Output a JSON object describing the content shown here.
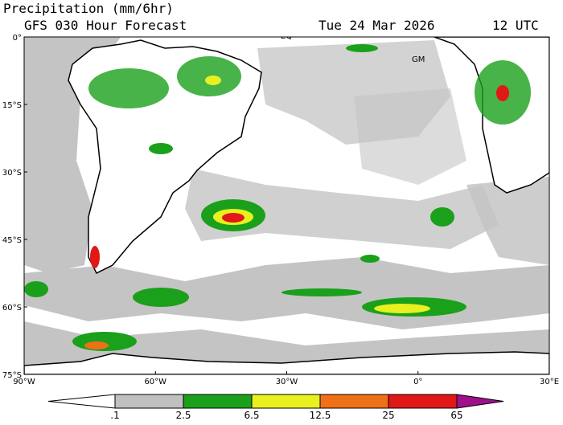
{
  "header": {
    "title": "Precipitation (mm/6hr)",
    "subtitle": "GFS 030 Hour Forecast",
    "date": "Tue 24 Mar 2026",
    "time": "12 UTC"
  },
  "map": {
    "lat_labels": [
      "0°",
      "15°S",
      "30°S",
      "45°S",
      "60°S",
      "75°S"
    ],
    "lon_labels": [
      "90°W",
      "60°W",
      "30°W",
      "0°",
      "30°E"
    ],
    "place_labels": [
      "EQ",
      "GM"
    ]
  },
  "colorbar": {
    "labels": [
      ".1",
      "2.5",
      "6.5",
      "12.5",
      "25",
      "65"
    ],
    "colors": [
      "#ffffff",
      "#c0c0c0",
      "#1aa01a",
      "#e8f020",
      "#f07018",
      "#e01818",
      "#a0108c"
    ]
  }
}
